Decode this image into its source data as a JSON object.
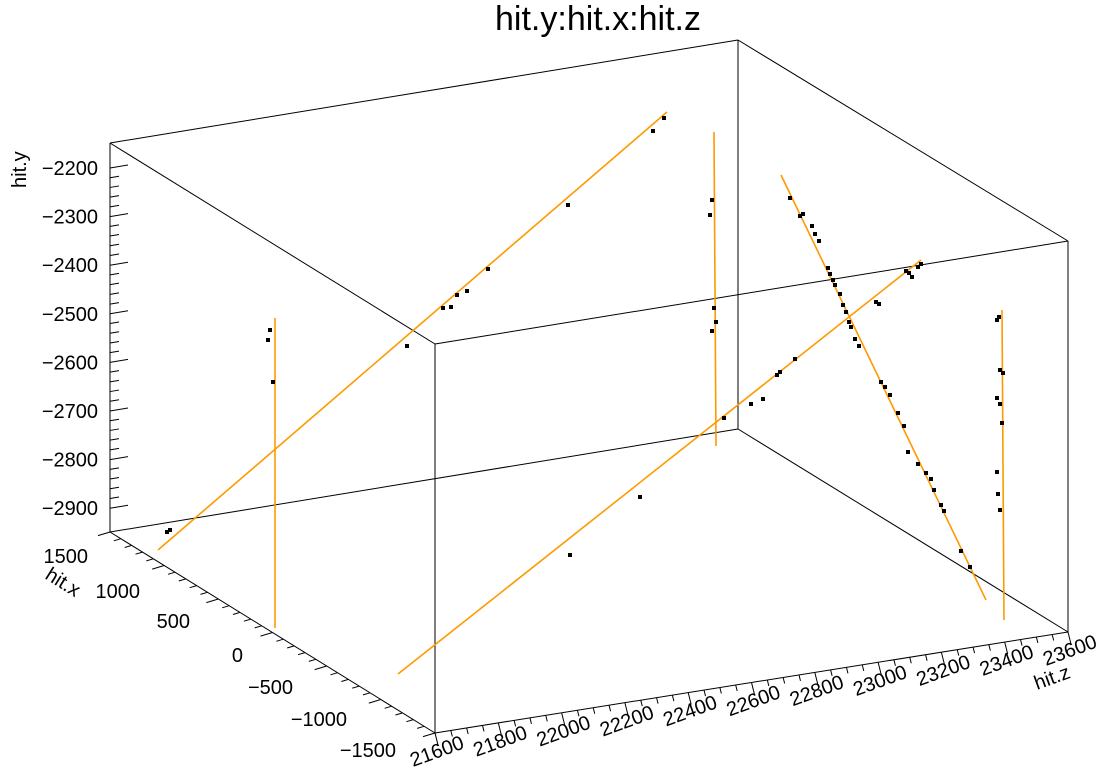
{
  "chart_data": {
    "type": "scatter",
    "title": "hit.y:hit.x:hit.z",
    "xlabel": "hit.z",
    "ylabel": "hit.y",
    "zlabel": "hit.x",
    "axis_colors": {
      "frame": "#000000",
      "tracks": "#ff9900",
      "points": "#000000"
    },
    "y_axis": {
      "ticks": [
        -2200,
        -2300,
        -2400,
        -2500,
        -2600,
        -2700,
        -2800,
        -2900
      ]
    },
    "x_axis": {
      "ticks": [
        1500,
        1000,
        500,
        0,
        -500,
        -1000,
        -1500
      ]
    },
    "z_axis": {
      "ticks": [
        21600,
        21800,
        22000,
        22200,
        22400,
        22600,
        22800,
        23000,
        23200,
        23400,
        23600
      ]
    },
    "tick_labels": {
      "y": [
        "−2200",
        "−2300",
        "−2400",
        "−2500",
        "−2600",
        "−2700",
        "−2800",
        "−2900"
      ],
      "x": [
        "1500",
        "1000",
        "500",
        "0",
        "−500",
        "−1000",
        "−1500"
      ],
      "z": [
        "21600",
        "21800",
        "22000",
        "22200",
        "22400",
        "22600",
        "22800",
        "23000",
        "23200",
        "23400",
        "23600"
      ]
    },
    "point_groups": [
      {
        "name": "",
        "count": 18
      },
      {
        "name": "",
        "count": 30
      }
    ]
  }
}
